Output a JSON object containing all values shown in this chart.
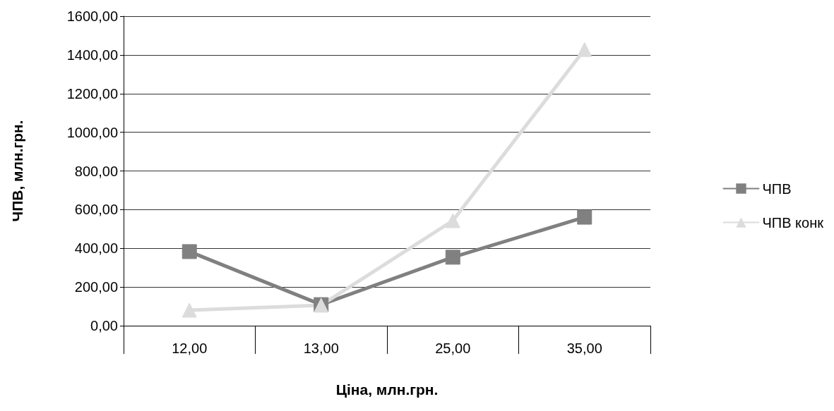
{
  "chart_data": {
    "type": "line",
    "xlabel": "Ціна, млн.грн.",
    "ylabel": "ЧПВ, млн.грн.",
    "categories": [
      "12,00",
      "13,00",
      "25,00",
      "35,00"
    ],
    "series": [
      {
        "name": "ЧПВ",
        "color": "#808080",
        "marker": "square",
        "values": [
          383,
          109,
          354,
          561
        ]
      },
      {
        "name": "ЧПВ конк",
        "color": "#dcdcdc",
        "marker": "triangle",
        "values": [
          80,
          106,
          543,
          1428
        ]
      }
    ],
    "ylim": [
      0,
      1600
    ],
    "yticks": [
      {
        "value": 0,
        "label": "0,00"
      },
      {
        "value": 200,
        "label": "200,00"
      },
      {
        "value": 400,
        "label": "400,00"
      },
      {
        "value": 600,
        "label": "600,00"
      },
      {
        "value": 800,
        "label": "800,00"
      },
      {
        "value": 1000,
        "label": "1000,00"
      },
      {
        "value": 1200,
        "label": "1200,00"
      },
      {
        "value": 1400,
        "label": "1400,00"
      },
      {
        "value": 1600,
        "label": "1600,00"
      }
    ],
    "grid": "y",
    "legend": "right",
    "line_style": "solid"
  }
}
